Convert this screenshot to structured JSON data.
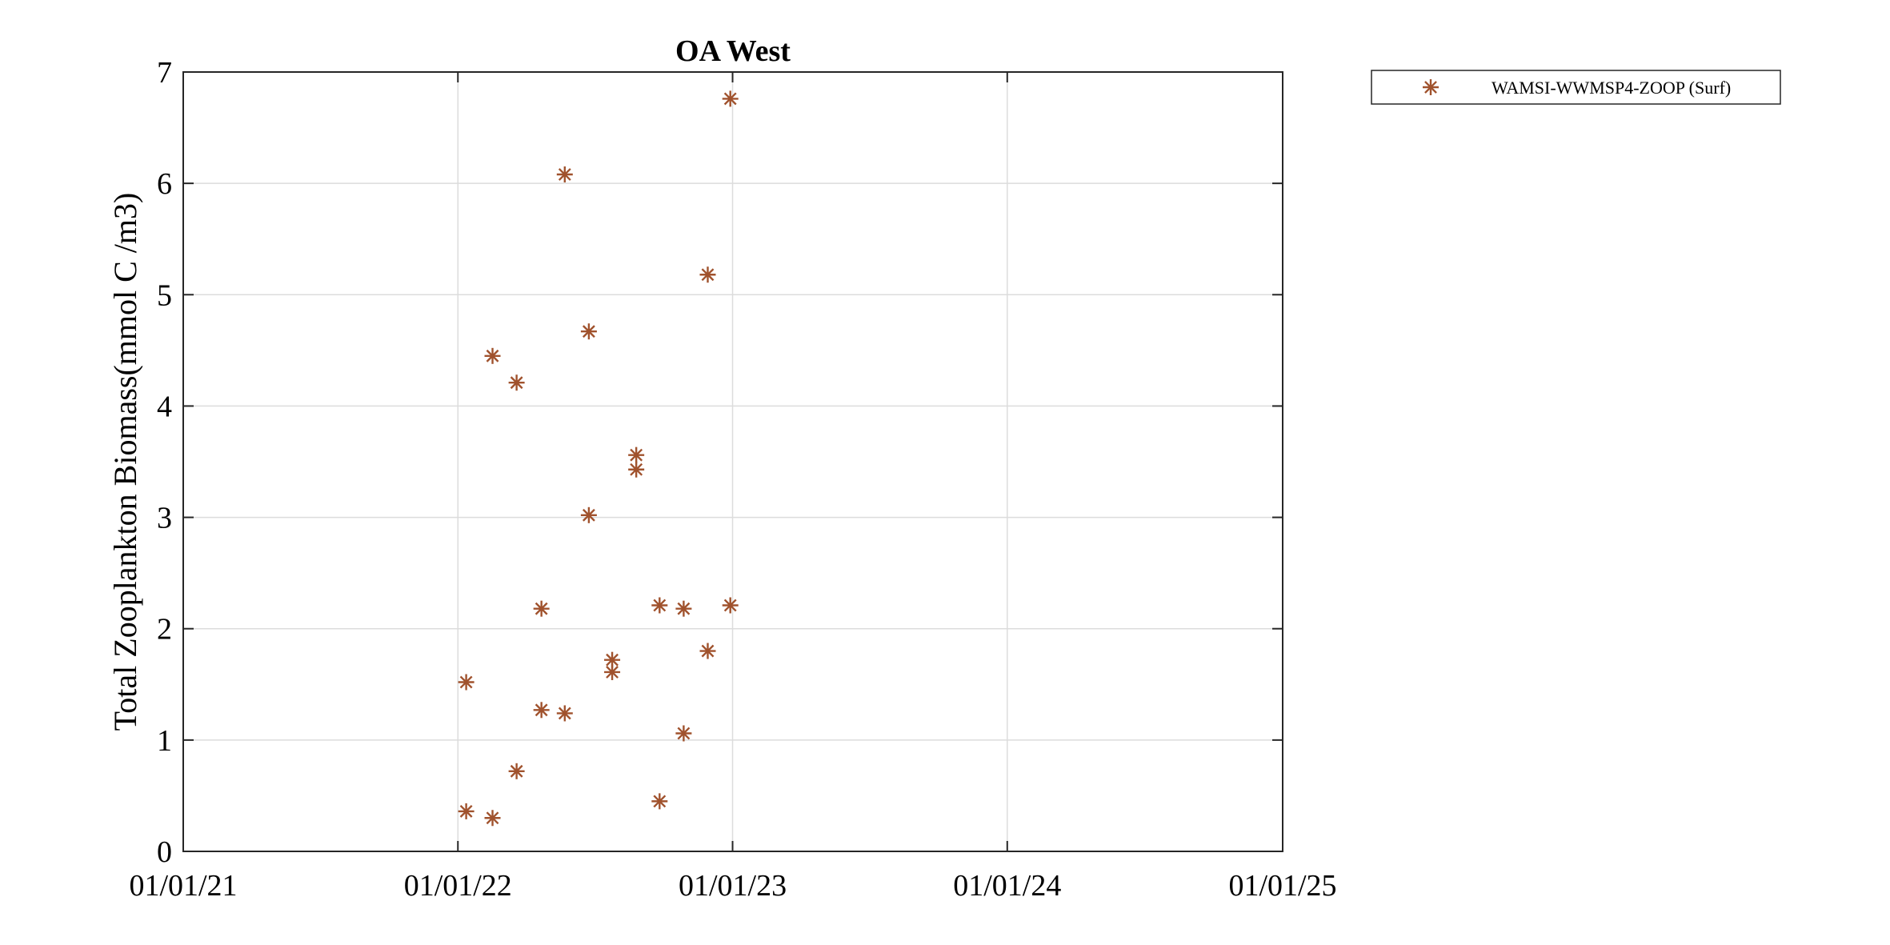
{
  "chart_data": {
    "type": "scatter",
    "title": "OA West",
    "xlabel": "",
    "ylabel": "Total Zooplankton Biomass(mmol C /m3)",
    "x_axis": {
      "type": "date",
      "range": [
        "2021-01-01",
        "2025-01-01"
      ],
      "ticks": [
        "2021-01-01",
        "2022-01-01",
        "2023-01-01",
        "2024-01-01",
        "2025-01-01"
      ],
      "tick_labels": [
        "01/01/21",
        "01/01/22",
        "01/01/23",
        "01/01/24",
        "01/01/25"
      ]
    },
    "y_axis": {
      "range": [
        0,
        7
      ],
      "ticks": [
        0,
        1,
        2,
        3,
        4,
        5,
        6,
        7
      ],
      "tick_labels": [
        "0",
        "1",
        "2",
        "3",
        "4",
        "5",
        "6",
        "7"
      ]
    },
    "grid": true,
    "legend": {
      "placement": "outside-top-right"
    },
    "series": [
      {
        "name": "WAMSI-WWMSP4-ZOOP (Surf)",
        "marker": "asterisk-icon",
        "color": "#a0522d",
        "points": [
          {
            "x": "2022-01-12",
            "y": 1.52
          },
          {
            "x": "2022-01-12",
            "y": 0.36
          },
          {
            "x": "2022-02-16",
            "y": 4.45
          },
          {
            "x": "2022-02-16",
            "y": 0.3
          },
          {
            "x": "2022-03-20",
            "y": 4.21
          },
          {
            "x": "2022-03-20",
            "y": 0.72
          },
          {
            "x": "2022-04-22",
            "y": 2.18
          },
          {
            "x": "2022-04-22",
            "y": 1.27
          },
          {
            "x": "2022-05-23",
            "y": 6.08
          },
          {
            "x": "2022-05-23",
            "y": 1.24
          },
          {
            "x": "2022-06-24",
            "y": 4.67
          },
          {
            "x": "2022-06-24",
            "y": 3.02
          },
          {
            "x": "2022-07-25",
            "y": 1.72
          },
          {
            "x": "2022-07-25",
            "y": 1.61
          },
          {
            "x": "2022-08-26",
            "y": 3.56
          },
          {
            "x": "2022-08-26",
            "y": 3.43
          },
          {
            "x": "2022-09-26",
            "y": 2.21
          },
          {
            "x": "2022-09-26",
            "y": 0.45
          },
          {
            "x": "2022-10-28",
            "y": 2.18
          },
          {
            "x": "2022-10-28",
            "y": 1.06
          },
          {
            "x": "2022-11-29",
            "y": 5.18
          },
          {
            "x": "2022-11-29",
            "y": 1.8
          },
          {
            "x": "2022-12-29",
            "y": 6.76
          },
          {
            "x": "2022-12-29",
            "y": 2.21
          }
        ]
      }
    ]
  }
}
